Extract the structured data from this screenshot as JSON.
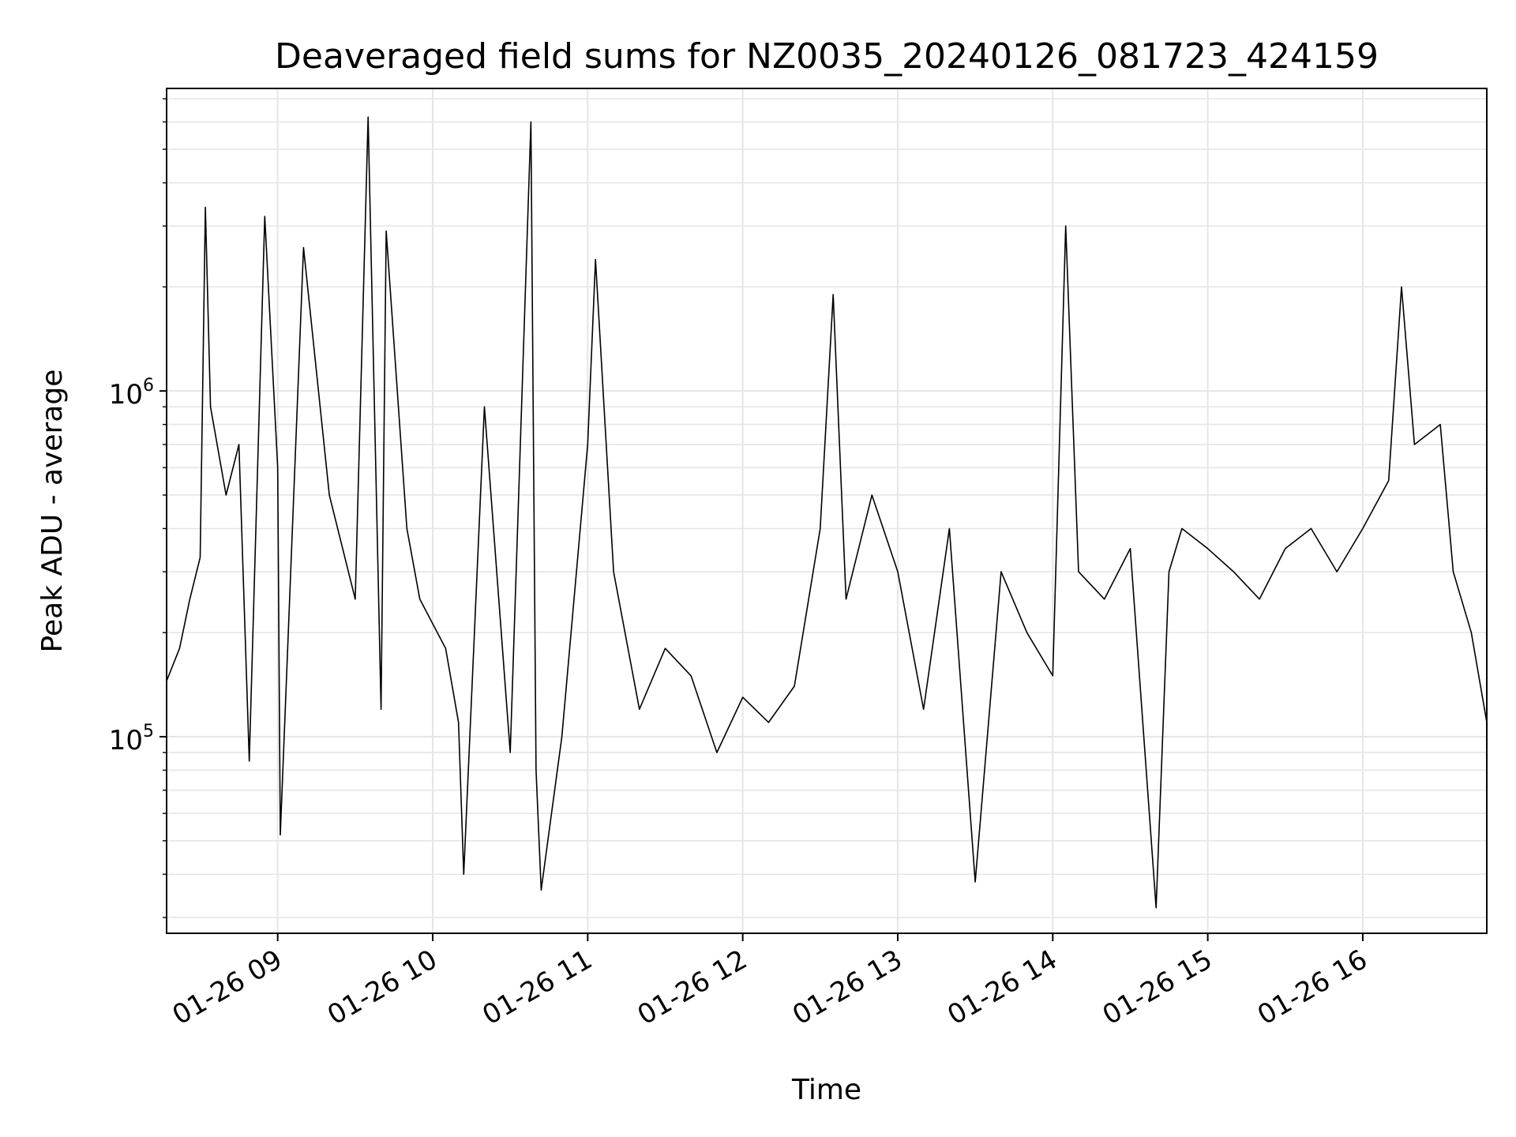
{
  "chart_data": {
    "type": "line",
    "title": "Deaveraged field sums for NZ0035_20240126_081723_424159",
    "xlabel": "Time",
    "ylabel": "Peak ADU - average",
    "x_axis": {
      "kind": "datetime",
      "range": [
        "2024-01-26 08:17",
        "2024-01-26 16:48"
      ],
      "ticks": [
        "2024-01-26 09:00",
        "2024-01-26 10:00",
        "2024-01-26 11:00",
        "2024-01-26 12:00",
        "2024-01-26 13:00",
        "2024-01-26 14:00",
        "2024-01-26 15:00",
        "2024-01-26 16:00"
      ],
      "tick_labels": [
        "01-26 09",
        "01-26 10",
        "01-26 11",
        "01-26 12",
        "01-26 13",
        "01-26 14",
        "01-26 15",
        "01-26 16"
      ]
    },
    "y_axis": {
      "scale": "log",
      "range": [
        27000,
        7500000
      ],
      "ticks": [
        100000,
        1000000
      ],
      "tick_labels": [
        {
          "base": "10",
          "exp": "5"
        },
        {
          "base": "10",
          "exp": "6"
        }
      ]
    },
    "grid": true,
    "line_color": "#000000",
    "grid_color": "#e6e6e6",
    "series": [
      {
        "values": [
          [
            "2024-01-26 08:17",
            145000
          ],
          [
            "2024-01-26 08:22",
            180000
          ],
          [
            "2024-01-26 08:26",
            250000
          ],
          [
            "2024-01-26 08:30",
            330000
          ],
          [
            "2024-01-26 08:32",
            3400000
          ],
          [
            "2024-01-26 08:34",
            900000
          ],
          [
            "2024-01-26 08:40",
            500000
          ],
          [
            "2024-01-26 08:45",
            700000
          ],
          [
            "2024-01-26 08:49",
            85000
          ],
          [
            "2024-01-26 08:55",
            3200000
          ],
          [
            "2024-01-26 09:00",
            600000
          ],
          [
            "2024-01-26 09:01",
            52000
          ],
          [
            "2024-01-26 09:10",
            2600000
          ],
          [
            "2024-01-26 09:20",
            500000
          ],
          [
            "2024-01-26 09:30",
            250000
          ],
          [
            "2024-01-26 09:35",
            6200000
          ],
          [
            "2024-01-26 09:40",
            120000
          ],
          [
            "2024-01-26 09:42",
            2900000
          ],
          [
            "2024-01-26 09:50",
            400000
          ],
          [
            "2024-01-26 09:55",
            250000
          ],
          [
            "2024-01-26 10:05",
            180000
          ],
          [
            "2024-01-26 10:10",
            110000
          ],
          [
            "2024-01-26 10:12",
            40000
          ],
          [
            "2024-01-26 10:20",
            900000
          ],
          [
            "2024-01-26 10:30",
            90000
          ],
          [
            "2024-01-26 10:38",
            6000000
          ],
          [
            "2024-01-26 10:40",
            80000
          ],
          [
            "2024-01-26 10:42",
            36000
          ],
          [
            "2024-01-26 10:50",
            100000
          ],
          [
            "2024-01-26 11:00",
            700000
          ],
          [
            "2024-01-26 11:03",
            2400000
          ],
          [
            "2024-01-26 11:10",
            300000
          ],
          [
            "2024-01-26 11:20",
            120000
          ],
          [
            "2024-01-26 11:30",
            180000
          ],
          [
            "2024-01-26 11:40",
            150000
          ],
          [
            "2024-01-26 11:50",
            90000
          ],
          [
            "2024-01-26 12:00",
            130000
          ],
          [
            "2024-01-26 12:10",
            110000
          ],
          [
            "2024-01-26 12:20",
            140000
          ],
          [
            "2024-01-26 12:30",
            400000
          ],
          [
            "2024-01-26 12:35",
            1900000
          ],
          [
            "2024-01-26 12:40",
            250000
          ],
          [
            "2024-01-26 12:50",
            500000
          ],
          [
            "2024-01-26 13:00",
            300000
          ],
          [
            "2024-01-26 13:10",
            120000
          ],
          [
            "2024-01-26 13:20",
            400000
          ],
          [
            "2024-01-26 13:30",
            38000
          ],
          [
            "2024-01-26 13:40",
            300000
          ],
          [
            "2024-01-26 13:50",
            200000
          ],
          [
            "2024-01-26 14:00",
            150000
          ],
          [
            "2024-01-26 14:05",
            3000000
          ],
          [
            "2024-01-26 14:10",
            300000
          ],
          [
            "2024-01-26 14:20",
            250000
          ],
          [
            "2024-01-26 14:30",
            350000
          ],
          [
            "2024-01-26 14:40",
            32000
          ],
          [
            "2024-01-26 14:45",
            300000
          ],
          [
            "2024-01-26 14:50",
            400000
          ],
          [
            "2024-01-26 15:00",
            350000
          ],
          [
            "2024-01-26 15:10",
            300000
          ],
          [
            "2024-01-26 15:20",
            250000
          ],
          [
            "2024-01-26 15:30",
            350000
          ],
          [
            "2024-01-26 15:40",
            400000
          ],
          [
            "2024-01-26 15:50",
            300000
          ],
          [
            "2024-01-26 16:00",
            400000
          ],
          [
            "2024-01-26 16:10",
            550000
          ],
          [
            "2024-01-26 16:15",
            2000000
          ],
          [
            "2024-01-26 16:20",
            700000
          ],
          [
            "2024-01-26 16:30",
            800000
          ],
          [
            "2024-01-26 16:35",
            300000
          ],
          [
            "2024-01-26 16:42",
            200000
          ],
          [
            "2024-01-26 16:48",
            110000
          ]
        ]
      }
    ]
  }
}
